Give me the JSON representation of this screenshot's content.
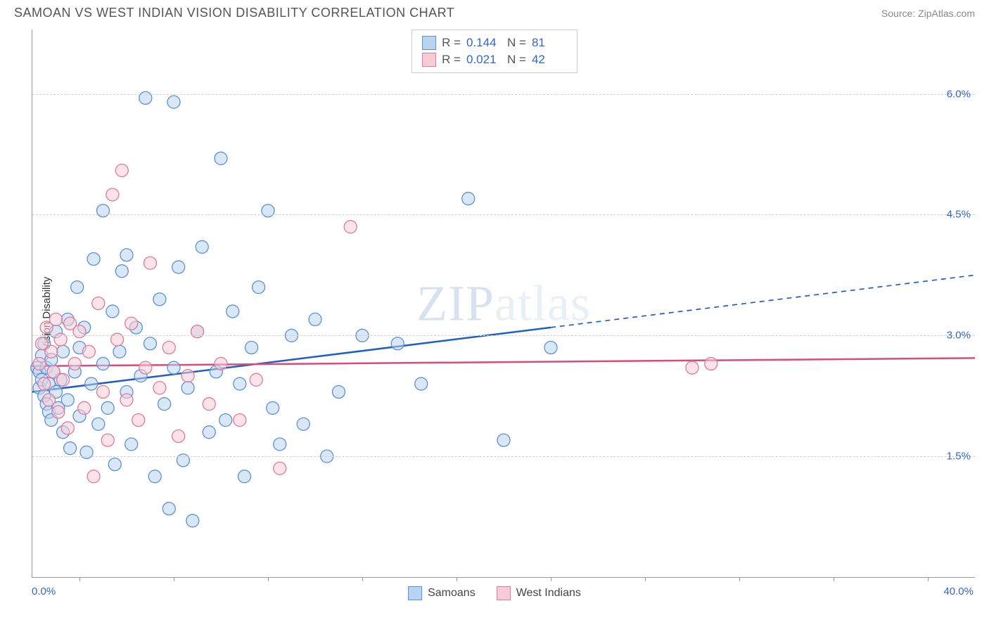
{
  "header": {
    "title": "SAMOAN VS WEST INDIAN VISION DISABILITY CORRELATION CHART",
    "source": "Source: ZipAtlas.com"
  },
  "watermark": {
    "text1": "ZIP",
    "text2": "atlas"
  },
  "chart": {
    "type": "scatter",
    "ylabel": "Vision Disability",
    "xlim": [
      0,
      40
    ],
    "ylim": [
      0,
      6.8
    ],
    "x_axis_label_left": "0.0%",
    "x_axis_label_right": "40.0%",
    "ytick_values": [
      1.5,
      3.0,
      4.5,
      6.0
    ],
    "ytick_labels": [
      "1.5%",
      "3.0%",
      "4.5%",
      "6.0%"
    ],
    "xtick_positions": [
      2,
      6,
      10,
      14,
      18,
      22,
      26,
      30,
      34,
      38
    ],
    "background_color": "#ffffff",
    "grid_color": "#d0d0d0",
    "axis_color": "#999999",
    "marker_radius": 9,
    "marker_opacity": 0.55,
    "series": [
      {
        "name": "Samoans",
        "color_fill": "#b9d4f0",
        "color_stroke": "#5a91d6",
        "R": "0.144",
        "N": "81",
        "trend": {
          "x1": 0,
          "y1": 2.3,
          "x2": 22,
          "y2": 3.1,
          "dash_x2": 40,
          "dash_y2": 3.75,
          "solid_color": "#1f5fc4",
          "width": 2.5
        },
        "points": [
          [
            0.2,
            2.6
          ],
          [
            0.3,
            2.35
          ],
          [
            0.3,
            2.55
          ],
          [
            0.4,
            2.45
          ],
          [
            0.4,
            2.75
          ],
          [
            0.5,
            2.25
          ],
          [
            0.5,
            2.9
          ],
          [
            0.6,
            2.15
          ],
          [
            0.6,
            2.6
          ],
          [
            0.7,
            2.4
          ],
          [
            0.7,
            2.05
          ],
          [
            0.8,
            2.7
          ],
          [
            0.8,
            1.95
          ],
          [
            0.9,
            2.55
          ],
          [
            1.0,
            2.3
          ],
          [
            1.0,
            3.05
          ],
          [
            1.1,
            2.1
          ],
          [
            1.2,
            2.45
          ],
          [
            1.3,
            2.8
          ],
          [
            1.3,
            1.8
          ],
          [
            1.5,
            2.2
          ],
          [
            1.5,
            3.2
          ],
          [
            1.6,
            1.6
          ],
          [
            1.8,
            2.55
          ],
          [
            1.9,
            3.6
          ],
          [
            2.0,
            2.0
          ],
          [
            2.0,
            2.85
          ],
          [
            2.2,
            3.1
          ],
          [
            2.3,
            1.55
          ],
          [
            2.5,
            2.4
          ],
          [
            2.6,
            3.95
          ],
          [
            2.8,
            1.9
          ],
          [
            3.0,
            2.65
          ],
          [
            3.0,
            4.55
          ],
          [
            3.2,
            2.1
          ],
          [
            3.4,
            3.3
          ],
          [
            3.5,
            1.4
          ],
          [
            3.7,
            2.8
          ],
          [
            3.8,
            3.8
          ],
          [
            4.0,
            2.3
          ],
          [
            4.0,
            4.0
          ],
          [
            4.2,
            1.65
          ],
          [
            4.4,
            3.1
          ],
          [
            4.6,
            2.5
          ],
          [
            4.8,
            5.95
          ],
          [
            5.0,
            2.9
          ],
          [
            5.2,
            1.25
          ],
          [
            5.4,
            3.45
          ],
          [
            5.6,
            2.15
          ],
          [
            5.8,
            0.85
          ],
          [
            6.0,
            2.6
          ],
          [
            6.0,
            5.9
          ],
          [
            6.2,
            3.85
          ],
          [
            6.4,
            1.45
          ],
          [
            6.6,
            2.35
          ],
          [
            6.8,
            0.7
          ],
          [
            7.0,
            3.05
          ],
          [
            7.2,
            4.1
          ],
          [
            7.5,
            1.8
          ],
          [
            7.8,
            2.55
          ],
          [
            8.0,
            5.2
          ],
          [
            8.2,
            1.95
          ],
          [
            8.5,
            3.3
          ],
          [
            8.8,
            2.4
          ],
          [
            9.0,
            1.25
          ],
          [
            9.3,
            2.85
          ],
          [
            9.6,
            3.6
          ],
          [
            10.0,
            4.55
          ],
          [
            10.2,
            2.1
          ],
          [
            10.5,
            1.65
          ],
          [
            11.0,
            3.0
          ],
          [
            11.5,
            1.9
          ],
          [
            12.0,
            3.2
          ],
          [
            12.5,
            1.5
          ],
          [
            13.0,
            2.3
          ],
          [
            14.0,
            3.0
          ],
          [
            15.5,
            2.9
          ],
          [
            16.5,
            2.4
          ],
          [
            18.5,
            4.7
          ],
          [
            20.0,
            1.7
          ],
          [
            22.0,
            2.85
          ]
        ]
      },
      {
        "name": "West Indians",
        "color_fill": "#f6cdd7",
        "color_stroke": "#e27998",
        "R": "0.021",
        "N": "42",
        "trend": {
          "x1": 0,
          "y1": 2.62,
          "x2": 40,
          "y2": 2.72,
          "solid_color": "#d94c7a",
          "width": 2.5
        },
        "points": [
          [
            0.3,
            2.65
          ],
          [
            0.4,
            2.9
          ],
          [
            0.5,
            2.4
          ],
          [
            0.6,
            3.1
          ],
          [
            0.7,
            2.2
          ],
          [
            0.8,
            2.8
          ],
          [
            0.9,
            2.55
          ],
          [
            1.0,
            3.2
          ],
          [
            1.1,
            2.05
          ],
          [
            1.2,
            2.95
          ],
          [
            1.3,
            2.45
          ],
          [
            1.5,
            1.85
          ],
          [
            1.6,
            3.15
          ],
          [
            1.8,
            2.65
          ],
          [
            2.0,
            3.05
          ],
          [
            2.2,
            2.1
          ],
          [
            2.4,
            2.8
          ],
          [
            2.6,
            1.25
          ],
          [
            2.8,
            3.4
          ],
          [
            3.0,
            2.3
          ],
          [
            3.2,
            1.7
          ],
          [
            3.4,
            4.75
          ],
          [
            3.6,
            2.95
          ],
          [
            3.8,
            5.05
          ],
          [
            4.0,
            2.2
          ],
          [
            4.2,
            3.15
          ],
          [
            4.5,
            1.95
          ],
          [
            4.8,
            2.6
          ],
          [
            5.0,
            3.9
          ],
          [
            5.4,
            2.35
          ],
          [
            5.8,
            2.85
          ],
          [
            6.2,
            1.75
          ],
          [
            6.6,
            2.5
          ],
          [
            7.0,
            3.05
          ],
          [
            7.5,
            2.15
          ],
          [
            8.0,
            2.65
          ],
          [
            8.8,
            1.95
          ],
          [
            9.5,
            2.45
          ],
          [
            10.5,
            1.35
          ],
          [
            13.5,
            4.35
          ],
          [
            28.0,
            2.6
          ],
          [
            28.8,
            2.65
          ]
        ]
      }
    ],
    "legend_box_labels": {
      "R_label": "R =",
      "N_label": "N ="
    }
  }
}
